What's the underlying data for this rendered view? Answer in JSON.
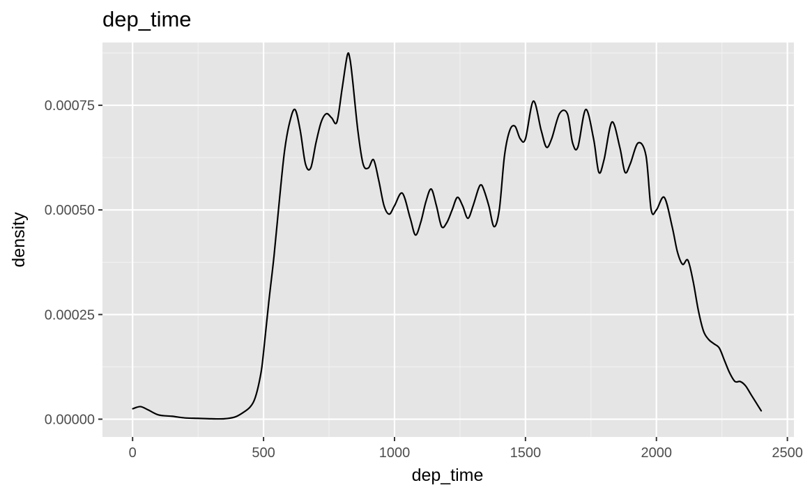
{
  "chart_data": {
    "type": "area",
    "title": "dep_time",
    "xlabel": "dep_time",
    "ylabel": "density",
    "xlim": [
      -115,
      2525
    ],
    "ylim": [
      -4.25e-05,
      0.0009
    ],
    "x_ticks": [
      0,
      500,
      1000,
      1500,
      2000,
      2500
    ],
    "x_tick_labels": [
      "0",
      "500",
      "1000",
      "1500",
      "2000",
      "2500"
    ],
    "y_ticks": [
      0,
      0.00025,
      0.0005,
      0.00075
    ],
    "y_tick_labels": [
      "0.00000",
      "0.00025",
      "0.00050",
      "0.00075"
    ],
    "grid": true,
    "legend": "none",
    "series": [
      {
        "x": [
          1,
          30,
          60,
          100,
          150,
          200,
          250,
          300,
          350,
          390,
          420,
          450,
          470,
          490,
          500,
          520,
          540,
          560,
          580,
          600,
          620,
          640,
          660,
          680,
          700,
          720,
          740,
          760,
          780,
          800,
          820,
          830,
          840,
          860,
          880,
          900,
          920,
          940,
          960,
          980,
          1000,
          1030,
          1060,
          1080,
          1100,
          1120,
          1140,
          1160,
          1180,
          1200,
          1220,
          1240,
          1260,
          1280,
          1300,
          1320,
          1330,
          1340,
          1360,
          1380,
          1400,
          1420,
          1440,
          1460,
          1480,
          1500,
          1530,
          1560,
          1580,
          1600,
          1630,
          1660,
          1680,
          1700,
          1730,
          1760,
          1780,
          1800,
          1830,
          1860,
          1880,
          1900,
          1930,
          1960,
          1980,
          2000,
          2030,
          2060,
          2080,
          2100,
          2120,
          2140,
          2160,
          2180,
          2200,
          2220,
          2240,
          2260,
          2280,
          2300,
          2320,
          2340,
          2360,
          2380,
          2400
        ],
        "y": [
          2.5e-05,
          3e-05,
          2.2e-05,
          1e-05,
          7e-06,
          3e-06,
          2e-06,
          1e-06,
          1e-06,
          5e-06,
          1.5e-05,
          3e-05,
          5.5e-05,
          0.00011,
          0.00016,
          0.00028,
          0.00039,
          0.00052,
          0.00064,
          0.00071,
          0.00074,
          0.00069,
          0.00061,
          0.0006,
          0.00066,
          0.00071,
          0.00073,
          0.00072,
          0.00071,
          0.00079,
          0.00087,
          0.00086,
          0.00081,
          0.00069,
          0.00061,
          0.0006,
          0.00062,
          0.00057,
          0.00051,
          0.00049,
          0.00051,
          0.00054,
          0.00048,
          0.00044,
          0.00047,
          0.00052,
          0.00055,
          0.00051,
          0.00046,
          0.00047,
          0.0005,
          0.00053,
          0.00051,
          0.00048,
          0.00051,
          0.00055,
          0.00056,
          0.00055,
          0.00051,
          0.00046,
          0.0005,
          0.00063,
          0.00069,
          0.0007,
          0.00067,
          0.00067,
          0.00076,
          0.00069,
          0.00065,
          0.00067,
          0.00073,
          0.00073,
          0.00066,
          0.00065,
          0.00074,
          0.00067,
          0.00059,
          0.00062,
          0.00071,
          0.00065,
          0.00059,
          0.00061,
          0.00066,
          0.00063,
          0.0005,
          0.0005,
          0.00053,
          0.00046,
          0.0004,
          0.00037,
          0.00038,
          0.00033,
          0.00026,
          0.00021,
          0.00019,
          0.00018,
          0.00017,
          0.00014,
          0.00011,
          9e-05,
          9e-05,
          8e-05,
          6e-05,
          4e-05,
          2e-05
        ]
      }
    ]
  },
  "colors": {
    "panel_background": "#e5e5e5",
    "grid_major": "#ffffff",
    "grid_minor": "#f2f2f2",
    "line": "#000000",
    "tick_label": "#4d4d4d"
  }
}
